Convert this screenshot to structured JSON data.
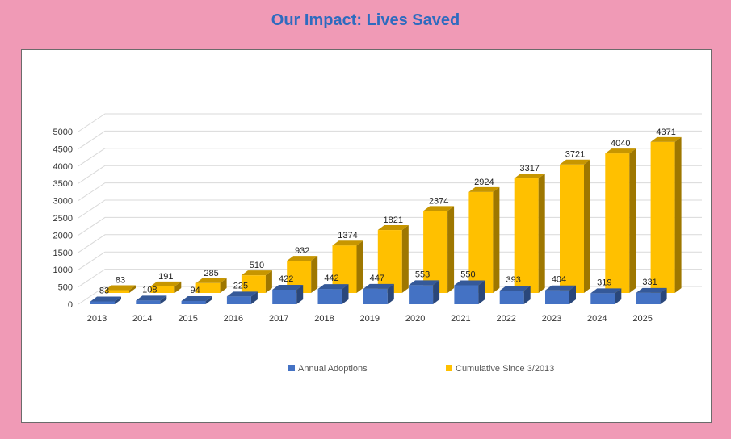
{
  "chart_data": {
    "type": "bar",
    "title": "Our Impact:  Lives Saved",
    "categories": [
      "2013",
      "2014",
      "2015",
      "2016",
      "2017",
      "2018",
      "2019",
      "2020",
      "2021",
      "2022",
      "2023",
      "2024",
      "2025"
    ],
    "series": [
      {
        "name": "Annual Adoptions",
        "values": [
          83,
          108,
          94,
          225,
          422,
          442,
          447,
          553,
          550,
          393,
          404,
          319,
          331
        ],
        "color": "#4472c4"
      },
      {
        "name": "Cumulative Since 3/2013",
        "values": [
          83,
          191,
          285,
          510,
          932,
          1374,
          1821,
          2374,
          2924,
          3317,
          3721,
          4040,
          4371
        ],
        "color": "#ffc000"
      }
    ],
    "ylim": [
      0,
      5000
    ],
    "yticks": [
      "0",
      "500",
      "1000",
      "1500",
      "2000",
      "2500",
      "3000",
      "3500",
      "4000",
      "4500",
      "5000"
    ],
    "grid": true,
    "legend_position": "bottom",
    "style": "3d-clustered-bar"
  }
}
